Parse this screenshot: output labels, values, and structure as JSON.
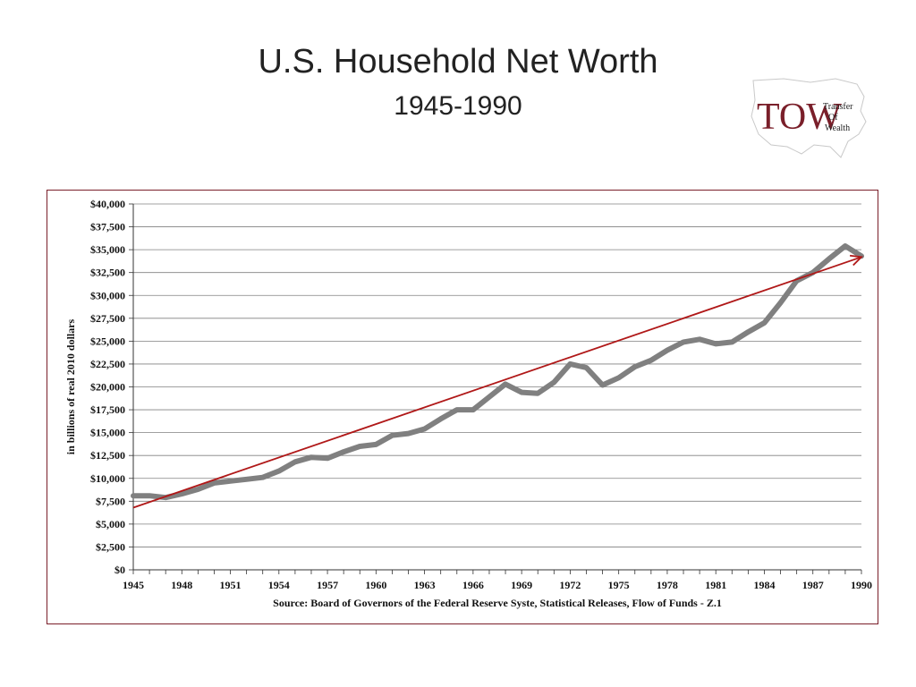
{
  "slide": {
    "title": "U.S. Household Net Worth",
    "subtitle": "1945-1990"
  },
  "logo": {
    "initials": "TOW",
    "line1": "Transfer",
    "line2": "Of",
    "line3": "Wealth",
    "color": "#7a1f2a"
  },
  "colors": {
    "series": "#808080",
    "trend": "#b01818",
    "frame": "#7a1f2a",
    "grid": "#808080"
  },
  "chart_data": {
    "type": "line",
    "ylabel": "in billions of real 2010 dollars",
    "note": "Source: Board of Governors of the Federal Reserve Syste, Statistical Releases, Flow of Funds - Z.1",
    "xlim": [
      1945,
      1990
    ],
    "ylim": [
      0,
      40000
    ],
    "x_ticks": [
      1945,
      1948,
      1951,
      1954,
      1957,
      1960,
      1963,
      1966,
      1969,
      1972,
      1975,
      1978,
      1981,
      1984,
      1987,
      1990
    ],
    "y_ticks": [
      "$0",
      "$2,500",
      "$5,000",
      "$7,500",
      "$10,000",
      "$12,500",
      "$15,000",
      "$17,500",
      "$20,000",
      "$22,500",
      "$25,000",
      "$27,500",
      "$30,000",
      "$32,500",
      "$35,000",
      "$37,500",
      "$40,000"
    ],
    "y_tick_values": [
      0,
      2500,
      5000,
      7500,
      10000,
      12500,
      15000,
      17500,
      20000,
      22500,
      25000,
      27500,
      30000,
      32500,
      35000,
      37500,
      40000
    ],
    "grid": true,
    "series": [
      {
        "x": [
          1945,
          1946,
          1947,
          1948,
          1949,
          1950,
          1951,
          1952,
          1953,
          1954,
          1955,
          1956,
          1957,
          1958,
          1959,
          1960,
          1961,
          1962,
          1963,
          1964,
          1965,
          1966,
          1967,
          1968,
          1969,
          1970,
          1971,
          1972,
          1973,
          1974,
          1975,
          1976,
          1977,
          1978,
          1979,
          1980,
          1981,
          1982,
          1983,
          1984,
          1985,
          1986,
          1987,
          1988,
          1989,
          1990
        ],
        "values": [
          8100,
          8100,
          7900,
          8300,
          8800,
          9500,
          9700,
          9900,
          10100,
          10800,
          11800,
          12300,
          12200,
          12900,
          13500,
          13700,
          14700,
          14900,
          15400,
          16500,
          17500,
          17500,
          18900,
          20300,
          19400,
          19300,
          20500,
          22500,
          22100,
          20200,
          21000,
          22200,
          22900,
          24000,
          24900,
          25200,
          24700,
          24900,
          26000,
          27000,
          29200,
          31600,
          32500,
          34000,
          35400,
          34300
        ]
      }
    ],
    "trendline": {
      "x": [
        1945,
        1990
      ],
      "values": [
        6800,
        34200
      ]
    }
  }
}
